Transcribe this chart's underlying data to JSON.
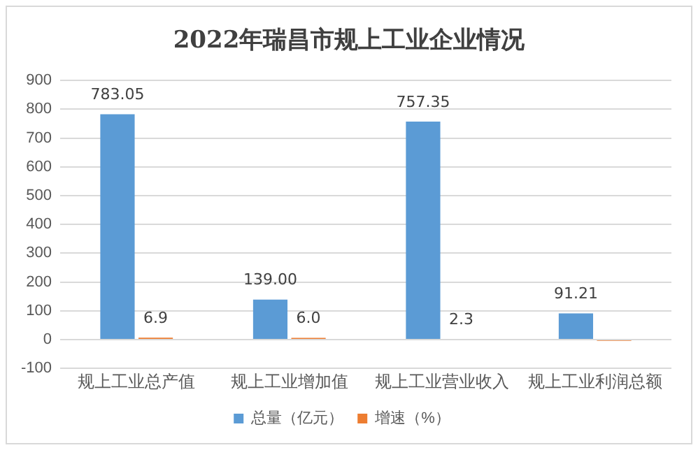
{
  "chart_data": {
    "type": "bar",
    "title": "2022年瑞昌市规上工业企业情况",
    "categories": [
      "规上工业总产值",
      "规上工业增加值",
      "规上工业营业收入",
      "规上工业利润总额"
    ],
    "series": [
      {
        "name": "总量（亿元）",
        "color": "#5b9bd5",
        "values": [
          783.05,
          139.0,
          757.35,
          91.21
        ],
        "value_labels": [
          "783.05",
          "139.00",
          "757.35",
          "91.21"
        ]
      },
      {
        "name": "增速（%）",
        "color": "#ed7d31",
        "values": [
          6.9,
          6.0,
          2.3,
          -4
        ],
        "value_labels": [
          "6.9",
          "6.0",
          "2.3",
          null
        ]
      }
    ],
    "ylim": [
      -100,
      900
    ],
    "yticks": [
      -100,
      0,
      100,
      200,
      300,
      400,
      500,
      600,
      700,
      800,
      900
    ],
    "grid": "y",
    "legend": "bottom"
  }
}
